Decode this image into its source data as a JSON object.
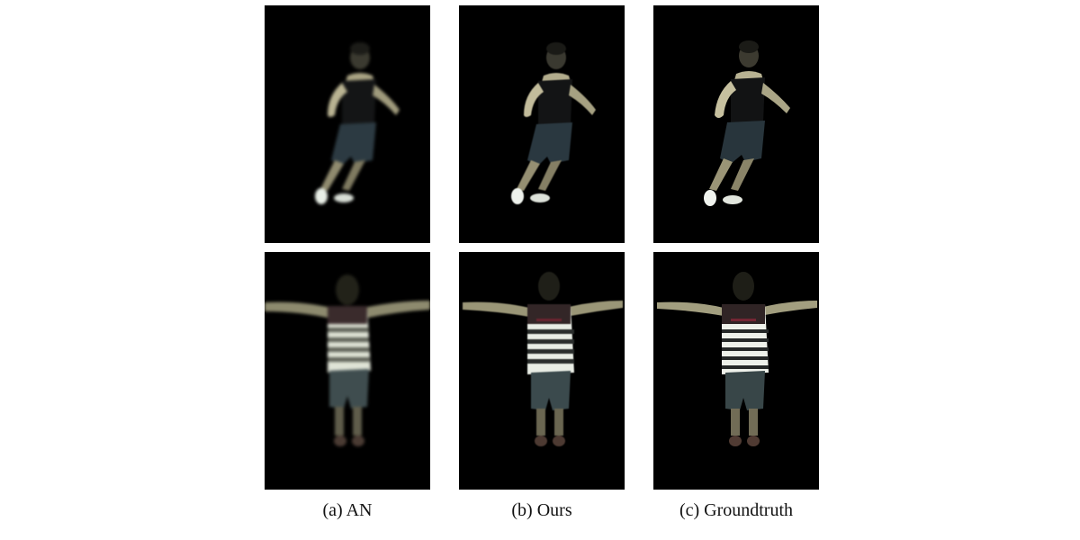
{
  "figure": {
    "captions": {
      "a": "(a) AN",
      "b": "(b) Ours",
      "c": "(c) Groundtruth"
    },
    "colors": {
      "background": "#000000",
      "skin": "#c9c3a0",
      "tank_top": "#141516",
      "shorts": "#2c3a42",
      "stripe_light": "#e8ece4",
      "stripe_dark": "#2a2d2c",
      "collar": "#5a1e26"
    }
  }
}
